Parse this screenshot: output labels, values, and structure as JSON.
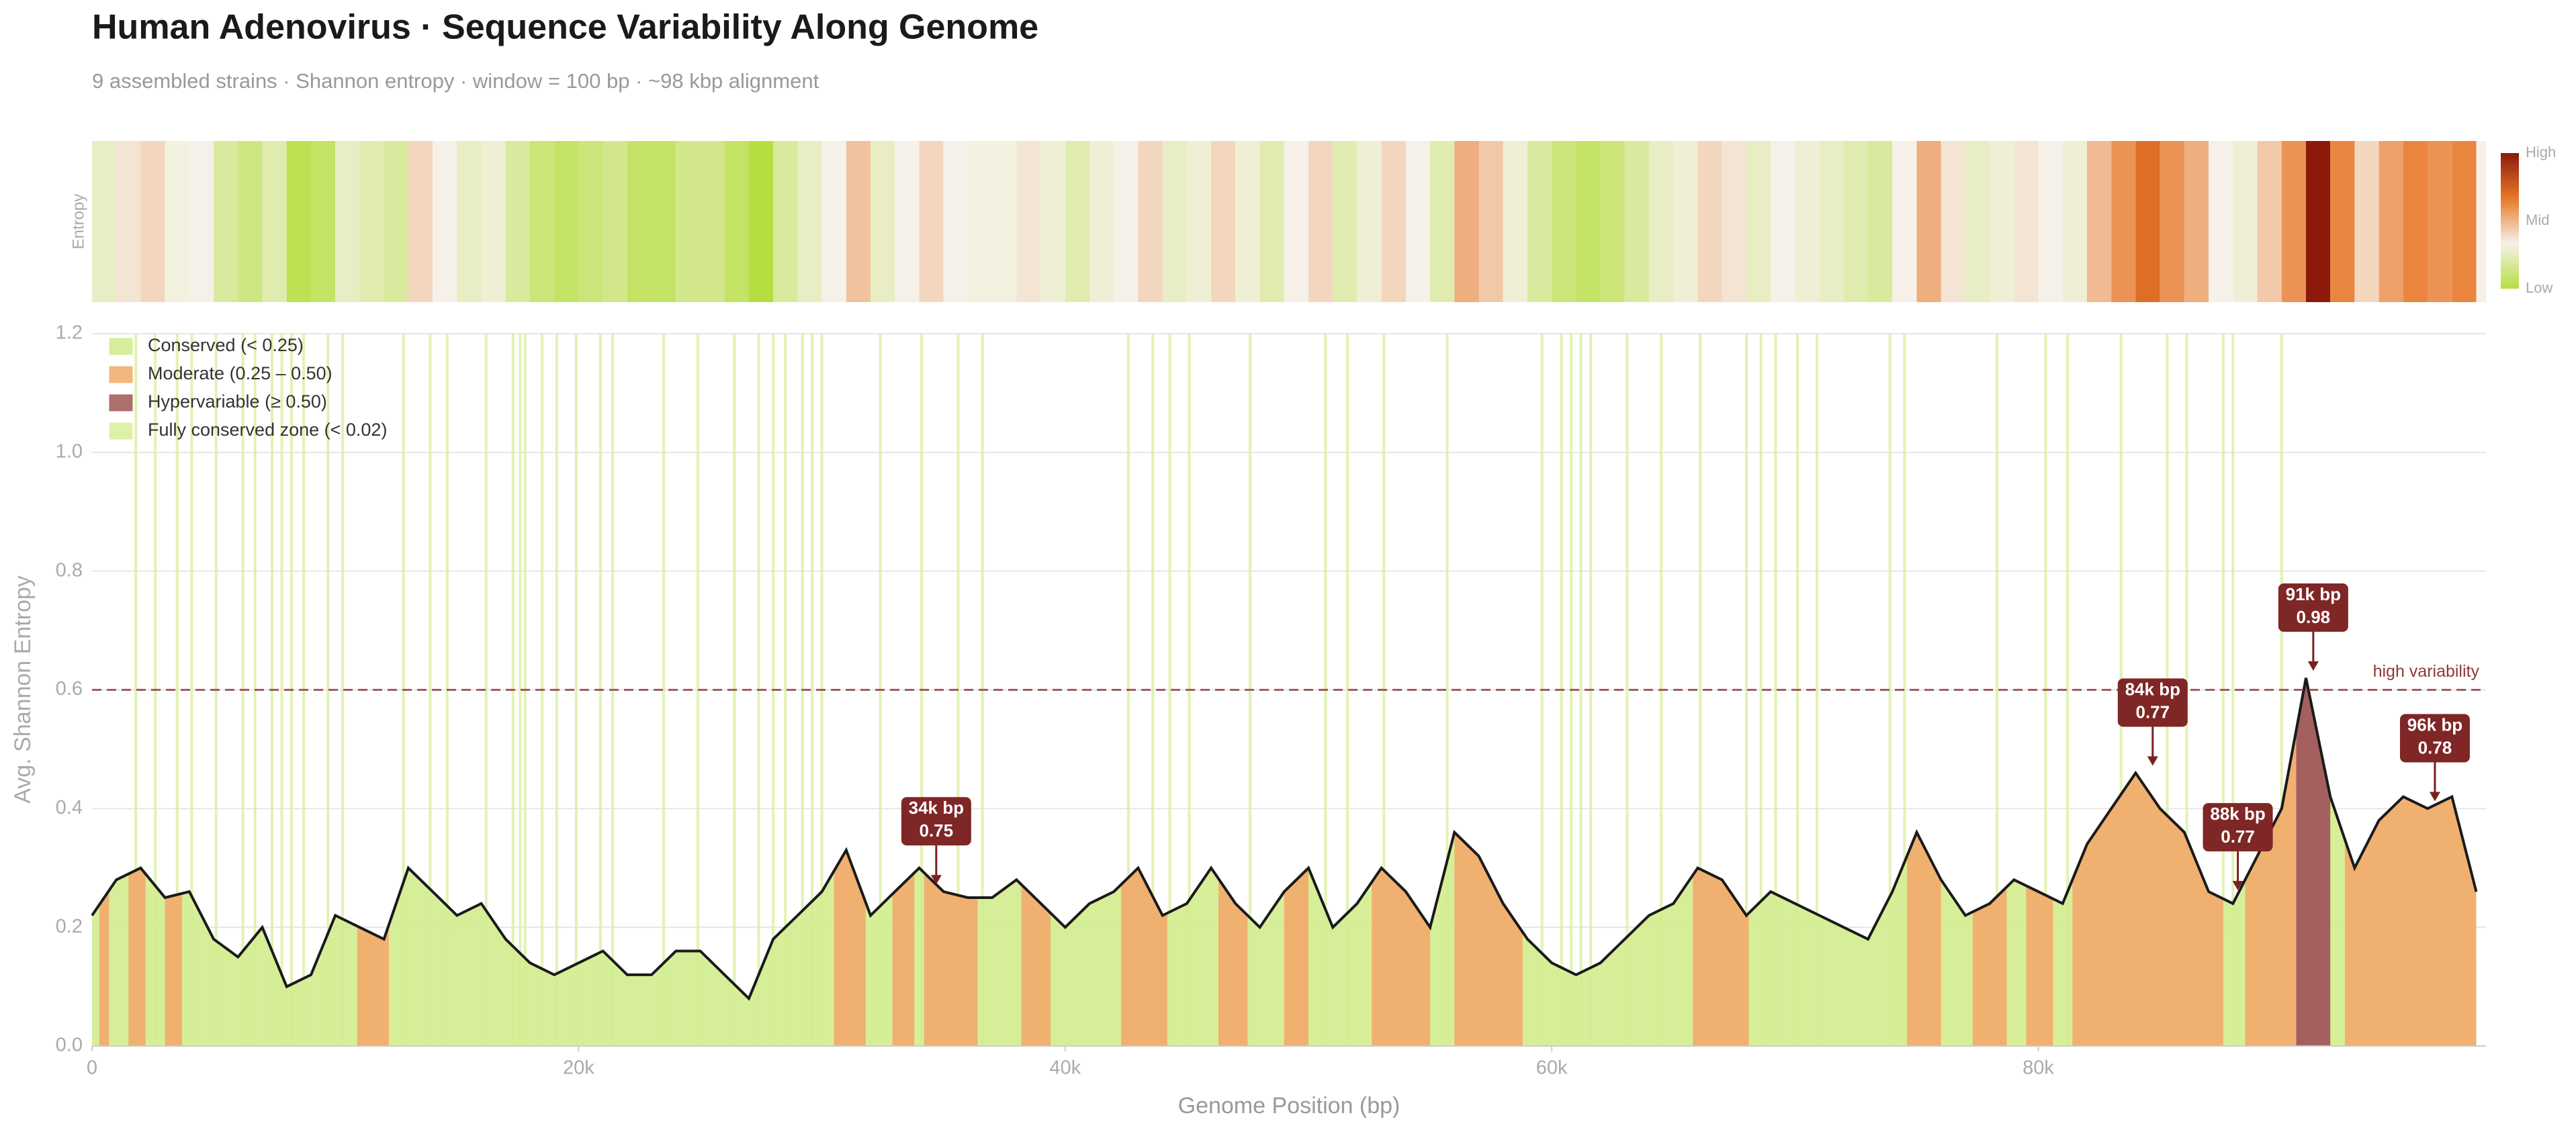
{
  "chart_data": {
    "type": "line",
    "title": "Human Adenovirus  ·  Sequence Variability Along Genome",
    "subtitle": "9 assembled strains  ·  Shannon entropy  ·  window = 100 bp  ·  ~98 kbp alignment",
    "xlabel": "Genome Position (bp)",
    "ylabel": "Avg. Shannon Entropy",
    "heatmap": {
      "label": "Entropy",
      "colorbar": [
        "High",
        "Mid",
        "Low"
      ],
      "colors": [
        "#8b1a0a",
        "#e8782a",
        "#f6f1e8",
        "#b5df40"
      ]
    },
    "x": [
      0,
      1000,
      2000,
      3000,
      4000,
      5000,
      6000,
      7000,
      8000,
      9000,
      10000,
      11000,
      12000,
      13000,
      14000,
      15000,
      16000,
      17000,
      18000,
      19000,
      20000,
      21000,
      22000,
      23000,
      24000,
      25000,
      26000,
      27000,
      28000,
      29000,
      30000,
      31000,
      32000,
      33000,
      34000,
      35000,
      36000,
      37000,
      38000,
      39000,
      40000,
      41000,
      42000,
      43000,
      44000,
      45000,
      46000,
      47000,
      48000,
      49000,
      50000,
      51000,
      52000,
      53000,
      54000,
      55000,
      56000,
      57000,
      58000,
      59000,
      60000,
      61000,
      62000,
      63000,
      64000,
      65000,
      66000,
      67000,
      68000,
      69000,
      70000,
      71000,
      72000,
      73000,
      74000,
      75000,
      76000,
      77000,
      78000,
      79000,
      80000,
      81000,
      82000,
      83000,
      84000,
      85000,
      86000,
      87000,
      88000,
      89000,
      90000,
      91000,
      92000,
      93000,
      94000,
      95000,
      96000,
      97000,
      98000
    ],
    "series": [
      {
        "name": "Avg. Shannon Entropy",
        "color": "#1a1a1a",
        "values": [
          0.22,
          0.28,
          0.3,
          0.25,
          0.26,
          0.18,
          0.15,
          0.2,
          0.1,
          0.12,
          0.22,
          0.2,
          0.18,
          0.3,
          0.26,
          0.22,
          0.24,
          0.18,
          0.14,
          0.12,
          0.14,
          0.16,
          0.12,
          0.12,
          0.16,
          0.16,
          0.12,
          0.08,
          0.18,
          0.22,
          0.26,
          0.33,
          0.22,
          0.26,
          0.3,
          0.26,
          0.25,
          0.25,
          0.28,
          0.24,
          0.2,
          0.24,
          0.26,
          0.3,
          0.22,
          0.24,
          0.3,
          0.24,
          0.2,
          0.26,
          0.3,
          0.2,
          0.24,
          0.3,
          0.26,
          0.2,
          0.36,
          0.32,
          0.24,
          0.18,
          0.14,
          0.12,
          0.14,
          0.18,
          0.22,
          0.24,
          0.3,
          0.28,
          0.22,
          0.26,
          0.24,
          0.22,
          0.2,
          0.18,
          0.26,
          0.36,
          0.28,
          0.22,
          0.24,
          0.28,
          0.26,
          0.24,
          0.34,
          0.4,
          0.46,
          0.4,
          0.36,
          0.26,
          0.24,
          0.32,
          0.4,
          0.62,
          0.42,
          0.3,
          0.38,
          0.42,
          0.4,
          0.42,
          0.26
        ]
      }
    ],
    "regions": [
      {
        "name": "Conserved  (< 0.25)",
        "color": "#d3ec8e"
      },
      {
        "name": "Moderate  (0.25 – 0.50)",
        "color": "#f0b070",
        "spans": [
          [
            300,
            700
          ],
          [
            1500,
            2200
          ],
          [
            3000,
            3700
          ],
          [
            10900,
            12200
          ],
          [
            30500,
            31800
          ],
          [
            32900,
            33800
          ],
          [
            34200,
            36400
          ],
          [
            38200,
            39400
          ],
          [
            42300,
            44200
          ],
          [
            46300,
            47500
          ],
          [
            49000,
            50000
          ],
          [
            52600,
            55000
          ],
          [
            56000,
            58800
          ],
          [
            65800,
            68100
          ],
          [
            74600,
            76000
          ],
          [
            77300,
            78700
          ],
          [
            79500,
            80600
          ],
          [
            81400,
            87600
          ],
          [
            88500,
            90600
          ],
          [
            92600,
            98400
          ]
        ]
      },
      {
        "name": "Hypervariable  (≥ 0.50)",
        "color": "#a3605f",
        "spans": [
          [
            90600,
            92000
          ]
        ]
      }
    ],
    "zones": {
      "name": "Fully conserved zone  (< 0.02)",
      "color": "#dcefa0",
      "x": [
        1800,
        2600,
        3500,
        4100,
        5100,
        6200,
        6700,
        7400,
        7800,
        8200,
        8700,
        9700,
        10300,
        12800,
        13900,
        14600,
        16200,
        17300,
        17600,
        17800,
        18500,
        19100,
        19900,
        20900,
        21400,
        23500,
        24900,
        26400,
        27400,
        28000,
        28500,
        29200,
        29600,
        30000,
        32400,
        34100,
        35600,
        36600,
        42600,
        43600,
        44300,
        45100,
        47600,
        50700,
        51600,
        53100,
        55700,
        59600,
        60400,
        60800,
        61200,
        61600,
        63100,
        64500,
        66100,
        68000,
        68600,
        69200,
        70100,
        70900,
        73900,
        74500,
        78300,
        80300,
        81200,
        83400,
        85300,
        86100,
        87600,
        88000,
        90000
      ]
    },
    "threshold": {
      "value": 0.6,
      "label": "high variability",
      "color": "#8b3a3a"
    },
    "annotations": [
      {
        "x": 34700,
        "y": 0.27,
        "text": [
          "34k bp",
          "0.75"
        ]
      },
      {
        "x": 84700,
        "y": 0.47,
        "text": [
          "84k bp",
          "0.77"
        ]
      },
      {
        "x": 88200,
        "y": 0.26,
        "text": [
          "88k bp",
          "0.77"
        ]
      },
      {
        "x": 91300,
        "y": 0.63,
        "text": [
          "91k bp",
          "0.98"
        ]
      },
      {
        "x": 96300,
        "y": 0.41,
        "text": [
          "96k bp",
          "0.78"
        ]
      }
    ],
    "xlim": [
      0,
      98400
    ],
    "ylim": [
      0,
      1.2
    ],
    "xticks": [
      0,
      {
        "value": 20000,
        "label": "20k"
      },
      {
        "value": 40000,
        "label": "40k"
      },
      {
        "value": 60000,
        "label": "60k"
      },
      {
        "value": 80000,
        "label": "80k"
      }
    ],
    "yticks": [
      {
        "value": 0,
        "label": "0.0"
      },
      0.2,
      0.4,
      0.6,
      0.8,
      {
        "value": 1,
        "label": "1.0"
      },
      1.2
    ],
    "grid": true
  }
}
